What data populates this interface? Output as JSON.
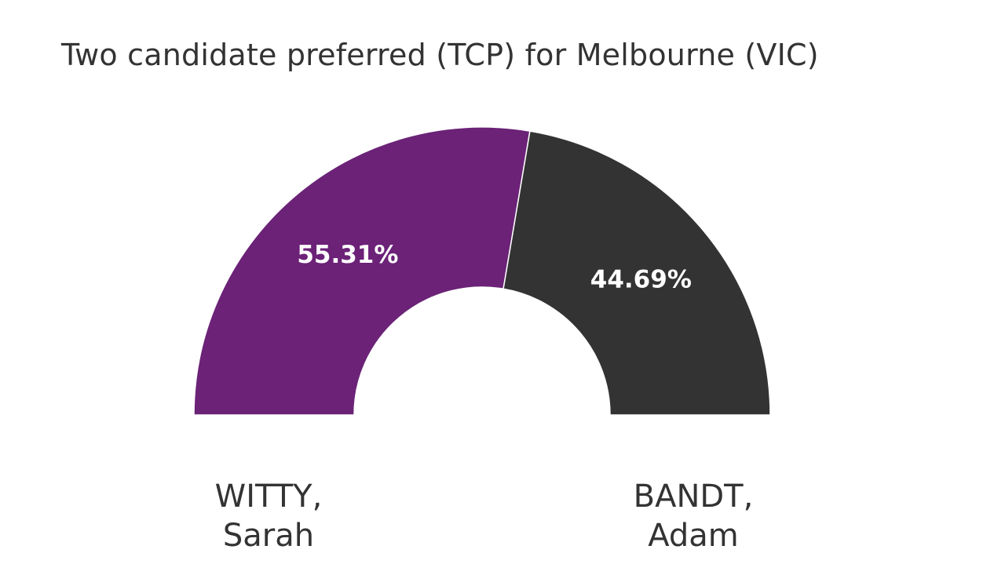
{
  "title": "Two candidate preferred (TCP) for Melbourne (VIC)",
  "colors": {
    "WITTY": "#6b2277",
    "BANDT": "#333333"
  },
  "candidates": [
    {
      "line1": "WITTY,",
      "line2": "Sarah"
    },
    {
      "line1": "BANDT,",
      "line2": "Adam"
    }
  ],
  "chart_data": {
    "type": "pie",
    "variant": "semi-donut",
    "title": "Two candidate preferred (TCP) for Melbourne (VIC)",
    "slices": [
      {
        "label": "WITTY, Sarah",
        "value": 55.31,
        "display": "55.31%",
        "color": "#6b2277"
      },
      {
        "label": "BANDT, Adam",
        "value": 44.69,
        "display": "44.69%",
        "color": "#333333"
      }
    ]
  }
}
